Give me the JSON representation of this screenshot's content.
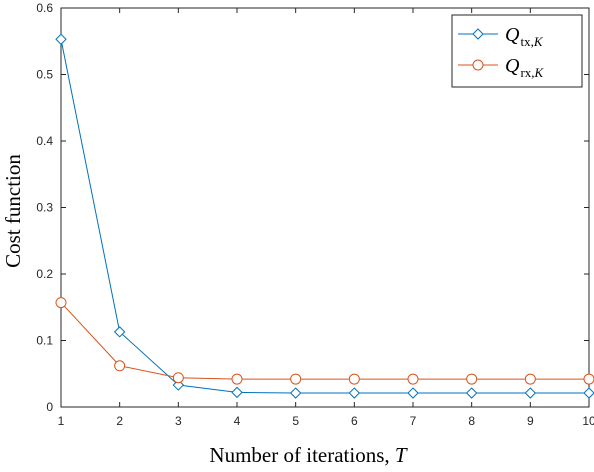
{
  "chart_data": {
    "type": "line",
    "title": "",
    "xlabel": "Number of iterations,",
    "xlabel_var": "T",
    "ylabel": "Cost function",
    "x": [
      1,
      2,
      3,
      4,
      5,
      6,
      7,
      8,
      9,
      10
    ],
    "xlim": [
      1,
      10
    ],
    "ylim": [
      0,
      0.6
    ],
    "xticks": [
      "1",
      "2",
      "3",
      "4",
      "5",
      "6",
      "7",
      "8",
      "9",
      "10"
    ],
    "yticks": [
      "0",
      "0.1",
      "0.2",
      "0.3",
      "0.4",
      "0.5",
      "0.6"
    ],
    "grid": false,
    "legend_position": "top-right",
    "series": [
      {
        "name": "Q_tx,K",
        "legend_main": "Q",
        "legend_sub": "tx,",
        "legend_sub2": "K",
        "color": "#0072BD",
        "marker": "diamond",
        "values": [
          0.553,
          0.113,
          0.033,
          0.022,
          0.021,
          0.021,
          0.021,
          0.021,
          0.021,
          0.021
        ]
      },
      {
        "name": "Q_rx,K",
        "legend_main": "Q",
        "legend_sub": "rx,",
        "legend_sub2": "K",
        "color": "#D95319",
        "marker": "circle",
        "values": [
          0.157,
          0.062,
          0.044,
          0.042,
          0.042,
          0.042,
          0.042,
          0.042,
          0.042,
          0.042
        ]
      }
    ]
  }
}
